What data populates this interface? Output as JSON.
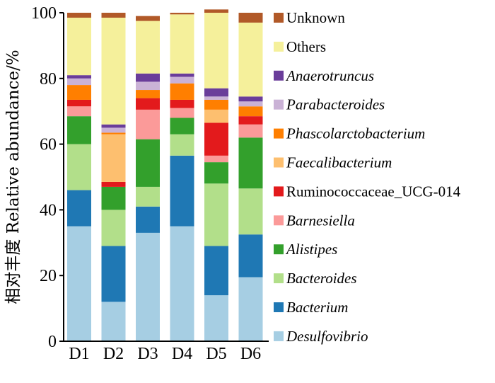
{
  "chart_data": {
    "type": "bar",
    "stacked": true,
    "ylabel": "相对丰度  Relative abundance/%",
    "ylim": [
      0,
      100
    ],
    "yticks": [
      0,
      20,
      40,
      60,
      80,
      100
    ],
    "categories": [
      "D1",
      "D2",
      "D3",
      "D4",
      "D5",
      "D6"
    ],
    "legend_position": "right",
    "series": [
      {
        "name": "Desulfovibrio",
        "italic": true,
        "color": "#a6cee3",
        "values": [
          35,
          12,
          33,
          35,
          14,
          19.5
        ]
      },
      {
        "name": "Bacterium",
        "italic": true,
        "color": "#1f78b4",
        "values": [
          11,
          17,
          8,
          21.5,
          15,
          13
        ]
      },
      {
        "name": "Bacteroides",
        "italic": true,
        "color": "#b2df8a",
        "values": [
          14,
          11,
          6,
          6.5,
          19,
          14
        ]
      },
      {
        "name": "Alistipes",
        "italic": true,
        "color": "#33a02c",
        "values": [
          8.5,
          7,
          14.5,
          5,
          6.5,
          15.5
        ]
      },
      {
        "name": "Barnesiella",
        "italic": true,
        "color": "#fb9a99",
        "values": [
          3,
          0,
          9,
          3,
          2,
          4
        ]
      },
      {
        "name": "Ruminococcaceae_UCG-014",
        "italic": false,
        "color": "#e31a1c",
        "values": [
          2,
          1.5,
          3.5,
          2.5,
          10,
          2.5
        ]
      },
      {
        "name": "Faecalibacterium",
        "italic": true,
        "color": "#fdbf6f",
        "values": [
          0,
          14.5,
          0,
          0,
          4,
          0
        ]
      },
      {
        "name": "Phascolarctobacterium",
        "italic": true,
        "color": "#ff7f00",
        "values": [
          4.5,
          0.5,
          2.5,
          5,
          3,
          3
        ]
      },
      {
        "name": "Parabacteroides",
        "italic": true,
        "color": "#cab2d6",
        "values": [
          2,
          1.5,
          2.5,
          2,
          1,
          1.5
        ]
      },
      {
        "name": "Anaerotruncus",
        "italic": true,
        "color": "#6a3d9a",
        "values": [
          1,
          1,
          2.5,
          1,
          2.5,
          1.5
        ]
      },
      {
        "name": "Others",
        "italic": false,
        "color": "#f5f09b",
        "values": [
          17.5,
          32.5,
          16,
          18,
          23,
          22.5
        ]
      },
      {
        "name": "Unknown",
        "italic": false,
        "color": "#b15928",
        "values": [
          1.5,
          1.5,
          1.5,
          0.5,
          1,
          3
        ]
      }
    ]
  }
}
